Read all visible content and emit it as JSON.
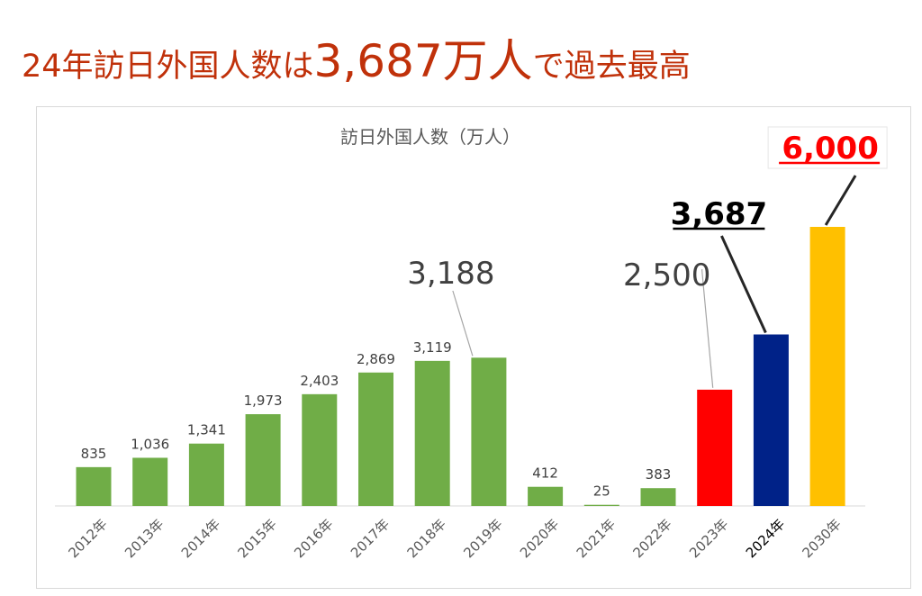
{
  "headline": {
    "part1": "24年訪日外国人数は",
    "part2": "3,687万人",
    "part3": "で過去最高"
  },
  "chart_data": {
    "type": "bar",
    "title": "訪日外国人数（万人）",
    "xlabel": "",
    "ylabel": "",
    "ylim": [
      0,
      6000
    ],
    "grid": false,
    "categories": [
      "2012年",
      "2013年",
      "2014年",
      "2015年",
      "2016年",
      "2017年",
      "2018年",
      "2019年",
      "2020年",
      "2021年",
      "2022年",
      "2023年",
      "2024年",
      "2030年"
    ],
    "values": [
      835,
      1036,
      1341,
      1973,
      2403,
      2869,
      3119,
      3188,
      412,
      25,
      383,
      2500,
      3687,
      6000
    ],
    "value_labels": [
      "835",
      "1,036",
      "1,341",
      "1,973",
      "2,403",
      "2,869",
      "3,119",
      "3,188",
      "412",
      "25",
      "383",
      "2,500",
      "3,687",
      "6,000"
    ],
    "colors": [
      "#70ad47",
      "#70ad47",
      "#70ad47",
      "#70ad47",
      "#70ad47",
      "#70ad47",
      "#70ad47",
      "#70ad47",
      "#70ad47",
      "#70ad47",
      "#70ad47",
      "#ff0000",
      "#002288",
      "#ffc000"
    ],
    "highlighted_category": "2024年"
  }
}
